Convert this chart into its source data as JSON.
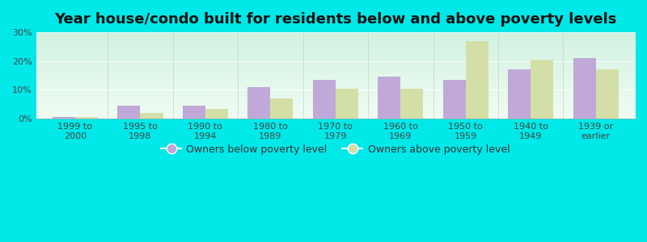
{
  "title": "Year house/condo built for residents below and above poverty levels",
  "categories": [
    "1999 to\n2000",
    "1995 to\n1998",
    "1990 to\n1994",
    "1980 to\n1989",
    "1970 to\n1979",
    "1960 to\n1969",
    "1950 to\n1959",
    "1940 to\n1949",
    "1939 or\nearlier"
  ],
  "below_poverty": [
    0.5,
    4.5,
    4.5,
    11.0,
    13.5,
    14.5,
    13.5,
    17.0,
    21.0
  ],
  "above_poverty": [
    0.5,
    2.0,
    3.5,
    7.0,
    10.5,
    10.5,
    27.0,
    20.5,
    17.0
  ],
  "below_color": "#c0a8d8",
  "above_color": "#d4dfa8",
  "background_top": "#d8f0e0",
  "background_bottom": "#f0faf0",
  "outer_background": "#00e8e8",
  "ylim": [
    0,
    30
  ],
  "yticks": [
    0,
    10,
    20,
    30
  ],
  "ytick_labels": [
    "0%",
    "10%",
    "20%",
    "30%"
  ],
  "bar_width": 0.35,
  "legend_below_label": "Owners below poverty level",
  "legend_above_label": "Owners above poverty level",
  "title_fontsize": 13,
  "tick_fontsize": 8,
  "legend_fontsize": 9
}
